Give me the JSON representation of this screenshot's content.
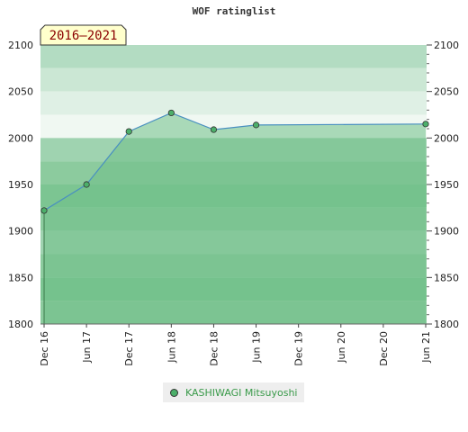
{
  "chart_data": {
    "type": "area",
    "title": "WOF ratinglist",
    "badge": "2016–2021",
    "x": [
      "Dec 16",
      "Jun 17",
      "Dec 17",
      "Jun 18",
      "Dec 18",
      "Jun 19",
      "Dec 19",
      "Jun 20",
      "Dec 20",
      "Jun 21"
    ],
    "yticks": [
      1800,
      1850,
      1900,
      1950,
      2000,
      2050,
      2100
    ],
    "ylim": [
      1800,
      2100
    ],
    "series": [
      {
        "name": "KASHIWAGI Mitsuyoshi",
        "points": [
          {
            "x": "Dec 16",
            "y": 1922
          },
          {
            "x": "Jun 17",
            "y": 1950
          },
          {
            "x": "Dec 17",
            "y": 2007
          },
          {
            "x": "Jun 18",
            "y": 2027
          },
          {
            "x": "Dec 18",
            "y": 2009
          },
          {
            "x": "Jun 19",
            "y": 2014
          },
          {
            "x": "Jun 21",
            "y": 2015
          }
        ]
      }
    ],
    "colors": {
      "band_light": "#c8e6d0",
      "band_mid": "#b2dcc0",
      "band_dark": "#7cc592",
      "fill": "#6fc089",
      "line": "#4a90c0",
      "marker": "#4caf6a"
    },
    "legend_position": "bottom-center"
  }
}
